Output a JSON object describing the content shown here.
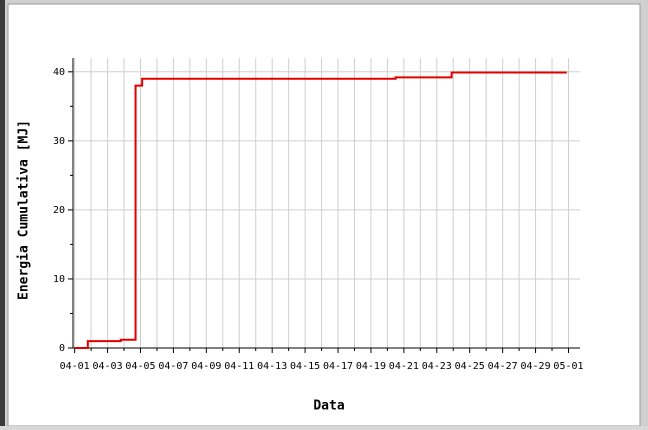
{
  "chart_data": {
    "type": "step-line",
    "xlabel": "Data",
    "ylabel": "Energia Cumulativa [MJ]",
    "x": [
      0,
      0.8,
      2.8,
      3.7,
      4.1,
      19.5,
      22.9,
      29.9
    ],
    "series": [
      {
        "color": "#e00000",
        "values": [
          0,
          1.0,
          1.2,
          38,
          39,
          39.2,
          39.9,
          39.9
        ]
      }
    ],
    "xlim": [
      -0.1,
      30.7
    ],
    "ylim": [
      0,
      42
    ],
    "xticks": [
      {
        "value": 0,
        "label": "04-01"
      },
      {
        "value": 2,
        "label": "04-03"
      },
      {
        "value": 4,
        "label": "04-05"
      },
      {
        "value": 6,
        "label": "04-07"
      },
      {
        "value": 8,
        "label": "04-09"
      },
      {
        "value": 10,
        "label": "04-11"
      },
      {
        "value": 12,
        "label": "04-13"
      },
      {
        "value": 14,
        "label": "04-15"
      },
      {
        "value": 16,
        "label": "04-17"
      },
      {
        "value": 18,
        "label": "04-19"
      },
      {
        "value": 20,
        "label": "04-21"
      },
      {
        "value": 22,
        "label": "04-23"
      },
      {
        "value": 24,
        "label": "04-25"
      },
      {
        "value": 26,
        "label": "04-27"
      },
      {
        "value": 28,
        "label": "04-29"
      },
      {
        "value": 30,
        "label": "05-01"
      }
    ],
    "xminorticks": [
      1,
      3,
      5,
      7,
      9,
      11,
      13,
      15,
      17,
      19,
      21,
      23,
      25,
      27,
      29
    ],
    "yticks": [
      0,
      10,
      20,
      30,
      40
    ],
    "yminorticks": [
      5,
      15,
      25,
      35
    ],
    "grid": true
  }
}
